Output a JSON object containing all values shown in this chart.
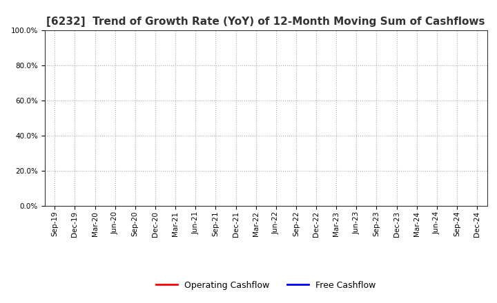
{
  "title": "[6232]  Trend of Growth Rate (YoY) of 12-Month Moving Sum of Cashflows",
  "title_fontsize": 11,
  "ylim": [
    0.0,
    1.0
  ],
  "yticks": [
    0.0,
    0.2,
    0.4,
    0.6,
    0.8,
    1.0
  ],
  "xtick_labels": [
    "Sep-19",
    "Dec-19",
    "Mar-20",
    "Jun-20",
    "Sep-20",
    "Dec-20",
    "Mar-21",
    "Jun-21",
    "Sep-21",
    "Dec-21",
    "Mar-22",
    "Jun-22",
    "Sep-22",
    "Dec-22",
    "Mar-23",
    "Jun-23",
    "Sep-23",
    "Dec-23",
    "Mar-24",
    "Jun-24",
    "Sep-24",
    "Dec-24"
  ],
  "operating_cashflow_color": "#ff0000",
  "free_cashflow_color": "#0000ff",
  "operating_cashflow_label": "Operating Cashflow",
  "free_cashflow_label": "Free Cashflow",
  "grid_color": "#aaaaaa",
  "background_color": "#ffffff",
  "legend_fontsize": 9,
  "tick_fontsize": 7.5,
  "title_color": "#333333"
}
